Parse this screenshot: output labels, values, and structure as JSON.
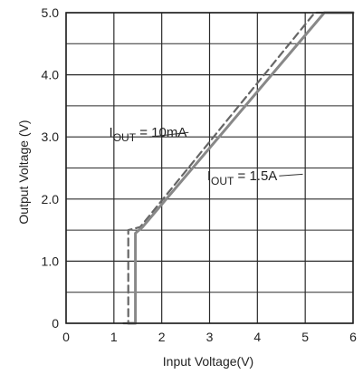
{
  "chart_data": {
    "type": "line",
    "xlabel": "Input Voltage(V)",
    "ylabel": "Output  Voltage (V)",
    "xlim": [
      0,
      6
    ],
    "ylim": [
      0,
      5
    ],
    "x_ticks": [
      "0",
      "1",
      "2",
      "3",
      "4",
      "5",
      "6"
    ],
    "y_ticks": [
      "0",
      "1.0",
      "2.0",
      "3.0",
      "4.0",
      "5.0"
    ],
    "grid": true,
    "series": [
      {
        "name_main": "I",
        "name_sub": "OUT",
        "name_rest": " = 10mA",
        "color": "#666666",
        "style": "dashed",
        "points": [
          [
            1.2,
            0.0
          ],
          [
            1.3,
            0.0
          ],
          [
            1.3,
            1.5
          ],
          [
            1.55,
            1.55
          ],
          [
            5.2,
            5.0
          ],
          [
            6.0,
            5.0
          ]
        ]
      },
      {
        "name_main": "I",
        "name_sub": "OUT",
        "name_rest": " = 1.5A",
        "color": "#888888",
        "style": "solid",
        "points": [
          [
            1.3,
            0.0
          ],
          [
            1.45,
            0.0
          ],
          [
            1.45,
            1.45
          ],
          [
            1.6,
            1.55
          ],
          [
            5.4,
            5.0
          ],
          [
            6.0,
            5.0
          ]
        ]
      }
    ],
    "annotations": [
      {
        "text_main": "I",
        "text_sub": "OUT",
        "text_rest": " = 10mA",
        "at": [
          0.9,
          3.0
        ],
        "leader_to": [
          1.75,
          3.0
        ]
      },
      {
        "text_main": "I",
        "text_sub": "OUT",
        "text_rest": " = 1.5A",
        "at": [
          2.95,
          2.3
        ],
        "leader_to": [
          4.95,
          2.4
        ]
      }
    ]
  }
}
